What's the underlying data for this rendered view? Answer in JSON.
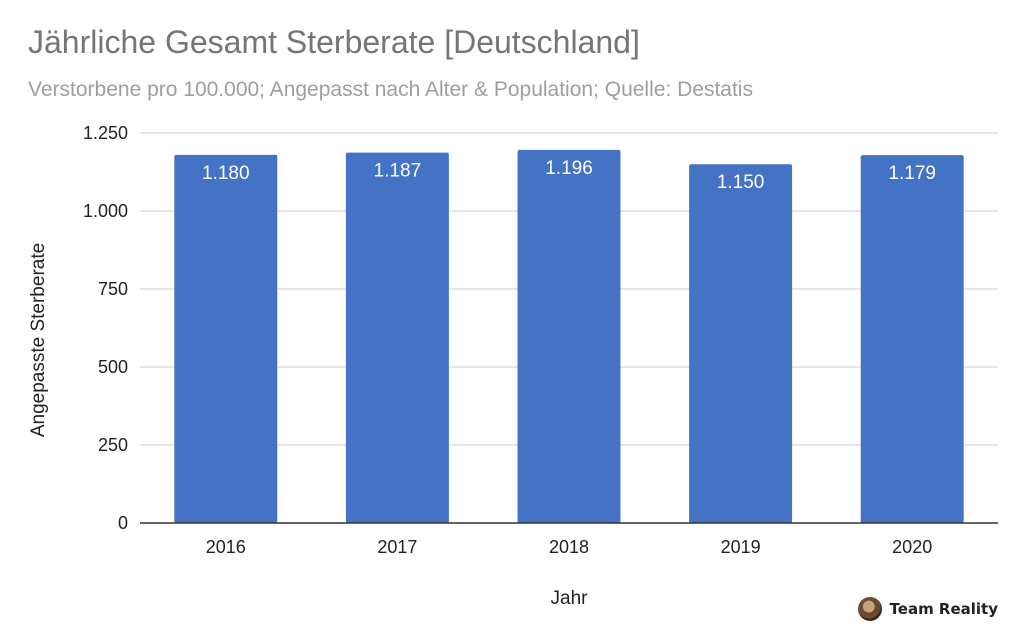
{
  "chart_data": {
    "type": "bar",
    "title": "Jährliche Gesamt Sterberate [Deutschland]",
    "subtitle": "Verstorbene pro 100.000; Angepasst nach Alter & Population; Quelle: Destatis",
    "xlabel": "Jahr",
    "ylabel": "Angepasste Sterberate",
    "categories": [
      "2016",
      "2017",
      "2018",
      "2019",
      "2020"
    ],
    "values": [
      1180,
      1187,
      1196,
      1150,
      1179
    ],
    "value_labels": [
      "1.180",
      "1.187",
      "1.196",
      "1.150",
      "1.179"
    ],
    "yticks": [
      0,
      250,
      500,
      750,
      1000,
      1250
    ],
    "ytick_labels": [
      "0",
      "250",
      "500",
      "750",
      "1.000",
      "1.250"
    ],
    "ylim": [
      0,
      1250
    ],
    "grid": true,
    "bar_color": "#4472c4",
    "grid_color": "#cccccc"
  },
  "watermark": {
    "text": "Team Reality",
    "icon": "avatar-icon"
  }
}
